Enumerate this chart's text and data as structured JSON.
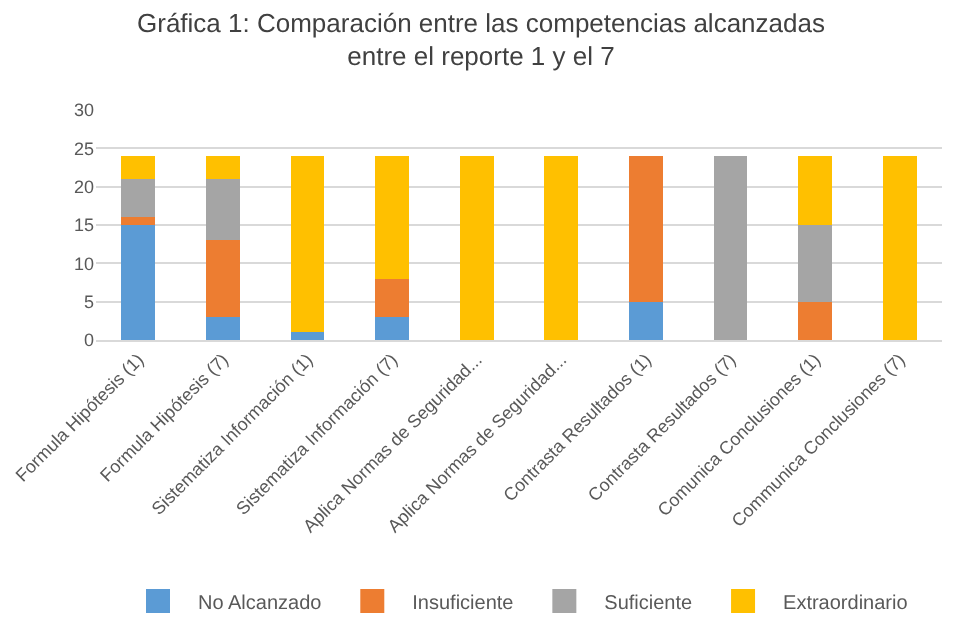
{
  "chart_data": {
    "type": "bar",
    "title": "Gráfica 1: Comparación entre las competencias alcanzadas entre el reporte 1 y el 7",
    "categories": [
      "Formula Hipótesis (1)",
      "Formula Hipótesis (7)",
      "Sistematiza Información (1)",
      "Sistematiza Información (7)",
      "Aplica Normas de Seguridad...",
      "Aplica Normas de Seguridad...",
      "Contrasta Resultados (1)",
      "Contrasta Resultados (7)",
      "Comunica Conclusiones (1)",
      "Communica Conclusiones (7)"
    ],
    "stacked": true,
    "series": [
      {
        "name": "No Alcanzado",
        "color": "#5b9bd5",
        "values": [
          15,
          3,
          1,
          3,
          0,
          0,
          5,
          0,
          0,
          0
        ]
      },
      {
        "name": "Insuficiente",
        "color": "#ed7d31",
        "values": [
          1,
          10,
          0,
          5,
          0,
          0,
          19,
          0,
          5,
          0
        ]
      },
      {
        "name": "Suficiente",
        "color": "#a5a5a5",
        "values": [
          5,
          8,
          0,
          0,
          0,
          0,
          0,
          24,
          10,
          0
        ]
      },
      {
        "name": "Extraordinario",
        "color": "#ffc000",
        "values": [
          3,
          3,
          23,
          16,
          24,
          24,
          0,
          0,
          9,
          24
        ]
      }
    ],
    "ylim": [
      0,
      30
    ],
    "yticks": [
      0,
      5,
      10,
      15,
      20,
      25,
      30
    ],
    "grid": "y",
    "legend": "bottom"
  }
}
